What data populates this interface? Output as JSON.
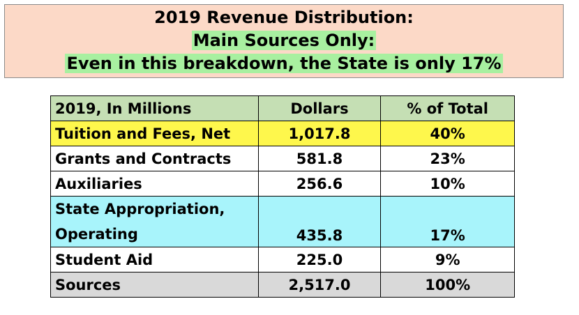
{
  "title": {
    "line1": "2019 Revenue Distribution:",
    "line2": "Main Sources Only:",
    "line3": "Even in this breakdown, the State is only 17%"
  },
  "colors": {
    "title_bg": "#fcd9c7",
    "title_highlight": "#a8f0a0",
    "header_bg": "#c5dfb4",
    "tuition_bg": "#fef74c",
    "state_bg": "#a8f4fb",
    "total_bg": "#d9d9d9"
  },
  "chart_data": {
    "type": "table",
    "columns": [
      "2019, In Millions",
      "Dollars",
      "% of Total"
    ],
    "rows": [
      {
        "label": "Tuition and Fees, Net",
        "dollars": "1,017.8",
        "percent": "40%"
      },
      {
        "label": "Grants and Contracts",
        "dollars": "581.8",
        "percent": "23%"
      },
      {
        "label": "Auxiliaries",
        "dollars": "256.6",
        "percent": "10%"
      },
      {
        "label_line1": "State Appropriation,",
        "label_line2": "Operating",
        "dollars": "435.8",
        "percent": "17%"
      },
      {
        "label": "Student Aid",
        "dollars": "225.0",
        "percent": "9%"
      },
      {
        "label": "Sources",
        "dollars": "2,517.0",
        "percent": "100%"
      }
    ]
  }
}
